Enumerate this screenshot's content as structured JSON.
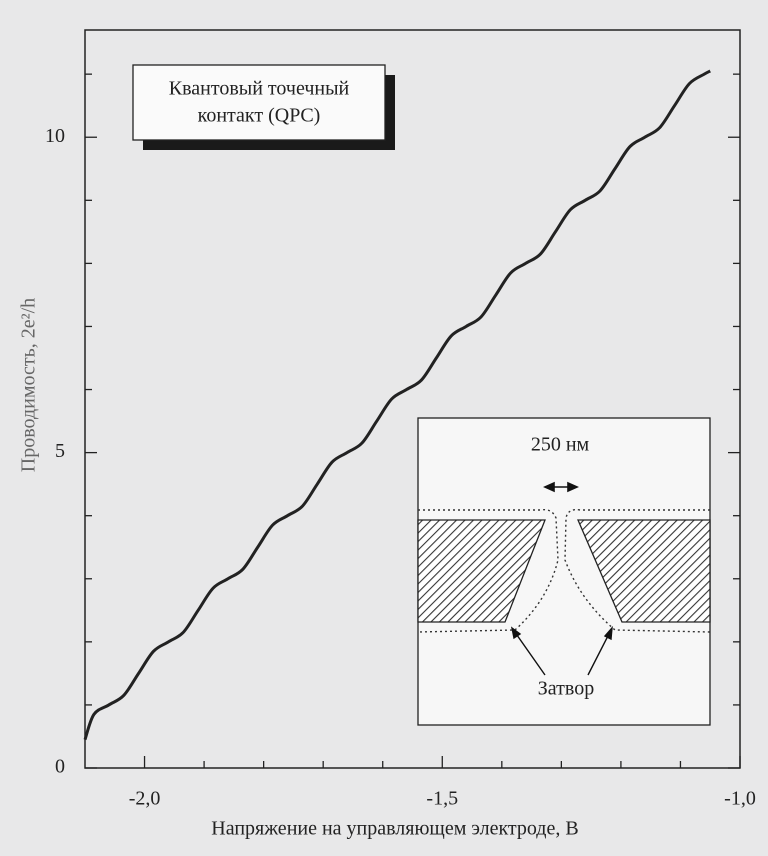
{
  "chart_data": {
    "type": "line",
    "xlabel": "Напряжение на управляющем электроде, В",
    "ylabel": "Проводимость, 2e²/h",
    "color": "#222222",
    "x": [
      -2.1,
      -2.085,
      -2.06,
      -2.035,
      -2.01,
      -1.985,
      -1.96,
      -1.935,
      -1.91,
      -1.885,
      -1.86,
      -1.835,
      -1.81,
      -1.785,
      -1.76,
      -1.735,
      -1.71,
      -1.685,
      -1.66,
      -1.635,
      -1.61,
      -1.585,
      -1.56,
      -1.535,
      -1.51,
      -1.485,
      -1.46,
      -1.435,
      -1.41,
      -1.385,
      -1.36,
      -1.335,
      -1.31,
      -1.285,
      -1.26,
      -1.235,
      -1.21,
      -1.185,
      -1.16,
      -1.135,
      -1.11,
      -1.085,
      -1.06,
      -1.05
    ],
    "values": [
      0.45,
      0.85,
      1,
      1.15,
      1.5,
      1.85,
      2,
      2.15,
      2.5,
      2.85,
      3,
      3.15,
      3.5,
      3.85,
      4,
      4.15,
      4.5,
      4.85,
      5,
      5.15,
      5.5,
      5.85,
      6,
      6.15,
      6.5,
      6.85,
      7,
      7.15,
      7.5,
      7.85,
      8,
      8.15,
      8.5,
      8.85,
      9,
      9.15,
      9.5,
      9.85,
      10,
      10.15,
      10.5,
      10.85,
      11,
      11.05
    ],
    "xlim": [
      -2.1,
      -1.0
    ],
    "ylim": [
      0,
      11.7
    ],
    "xticks": [
      {
        "value": -2.0,
        "label": "-2,0"
      },
      {
        "value": -1.5,
        "label": "-1,5"
      },
      {
        "value": -1.0,
        "label": "-1,0"
      }
    ],
    "yticks": [
      0,
      5,
      10
    ],
    "minor_xticks": [
      -1.9,
      -1.8,
      -1.7,
      -1.6,
      -1.4,
      -1.3,
      -1.2,
      -1.1
    ],
    "minor_yticks": [
      1,
      2,
      3,
      4,
      6,
      7,
      8,
      9,
      11
    ],
    "annotations": {
      "box": [
        "Квантовый точечный",
        "контакт (QPC)"
      ],
      "inset_scale": "250 нм",
      "inset_gate": "Затвор"
    }
  }
}
